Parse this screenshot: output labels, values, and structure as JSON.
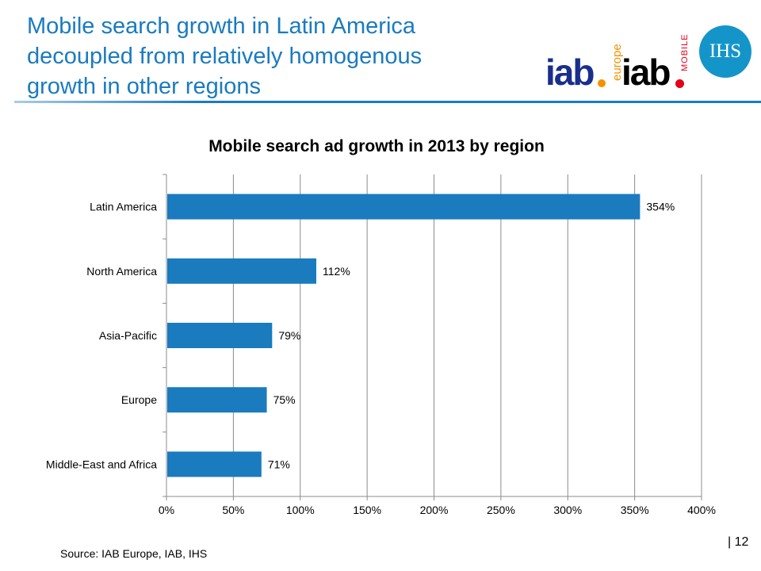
{
  "slide": {
    "title_lines": [
      "Mobile search growth in Latin America",
      "decoupled from relatively homogenous",
      "growth in other regions"
    ],
    "title_color": "#1a7bbf",
    "source": "Source: IAB Europe, IAB, IHS",
    "page_number": "| 12"
  },
  "logos": {
    "iab_europe": "iab",
    "iab_europe_sub": "europe",
    "iab_mobile": "iab",
    "iab_mobile_sub": "MOBILE",
    "ihs": "IHS"
  },
  "chart_data": {
    "type": "bar",
    "orientation": "horizontal",
    "title": "Mobile search ad growth in 2013 by region",
    "categories": [
      "Latin America",
      "North America",
      "Asia-Pacific",
      "Europe",
      "Middle-East and Africa"
    ],
    "values": [
      354,
      112,
      79,
      75,
      71
    ],
    "value_labels": [
      "354%",
      "112%",
      "79%",
      "75%",
      "71%"
    ],
    "xlim": [
      0,
      400
    ],
    "x_ticks": [
      0,
      50,
      100,
      150,
      200,
      250,
      300,
      350,
      400
    ],
    "x_tick_labels": [
      "0%",
      "50%",
      "100%",
      "150%",
      "200%",
      "250%",
      "300%",
      "350%",
      "400%"
    ],
    "bar_color": "#1a7bbf",
    "grid": true,
    "legend": "none"
  }
}
